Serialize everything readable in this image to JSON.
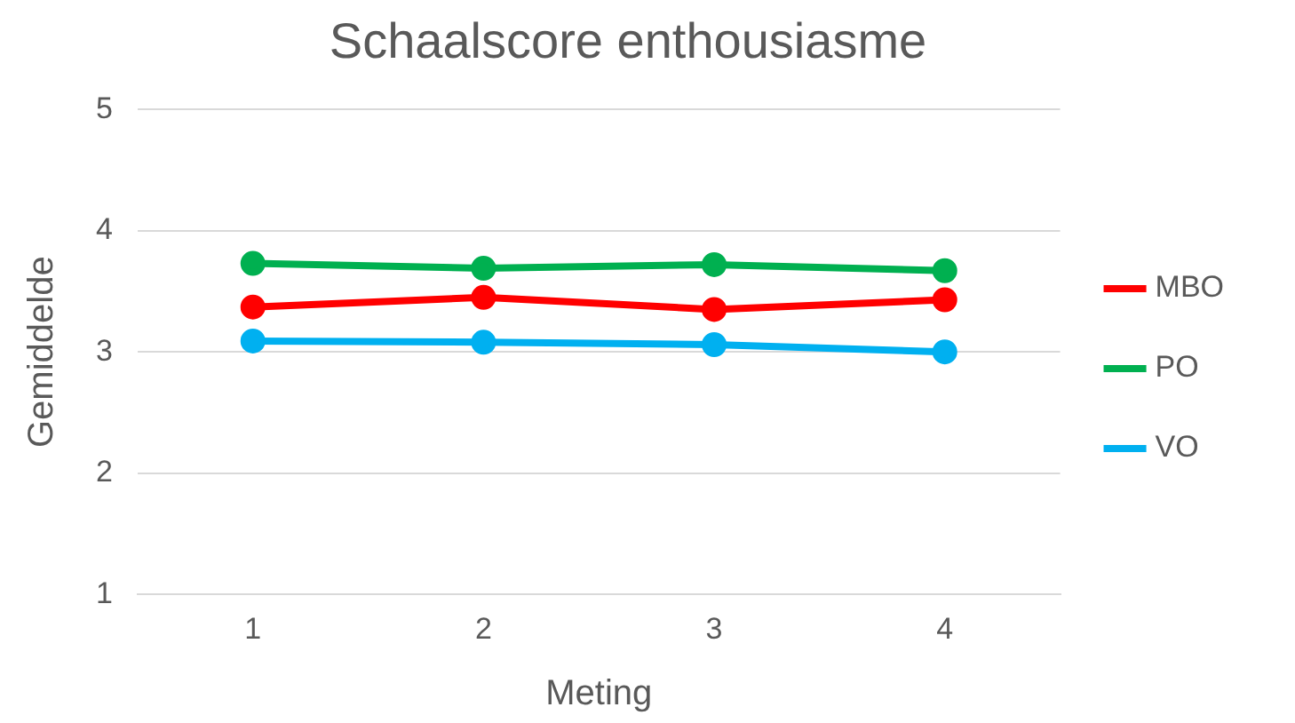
{
  "chart_data": {
    "type": "line",
    "title": "Schaalscore enthousiasme",
    "xlabel": "Meting",
    "ylabel": "Gemiddelde",
    "categories": [
      "1",
      "2",
      "3",
      "4"
    ],
    "series": [
      {
        "name": "MBO",
        "color": "#ff0000",
        "values": [
          3.37,
          3.45,
          3.35,
          3.43
        ]
      },
      {
        "name": "PO",
        "color": "#00b050",
        "values": [
          3.73,
          3.69,
          3.72,
          3.67
        ]
      },
      {
        "name": "VO",
        "color": "#00b0f0",
        "values": [
          3.09,
          3.08,
          3.06,
          3.0
        ]
      }
    ],
    "ylim": [
      1,
      5
    ],
    "yticks": [
      1,
      2,
      3,
      4,
      5
    ],
    "grid": "y",
    "legend": "right",
    "marker": "circle"
  }
}
